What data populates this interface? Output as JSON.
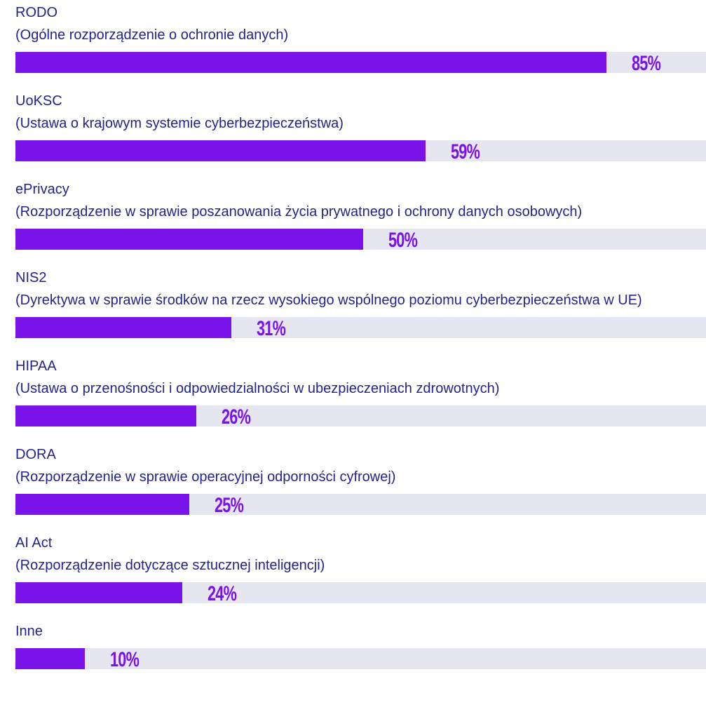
{
  "chart_data": {
    "type": "bar",
    "categories": [
      "RODO",
      "UoKSC",
      "ePrivacy",
      "NIS2",
      "HIPAA",
      "DORA",
      "AI Act",
      "Inne"
    ],
    "descriptions": [
      "(Ogólne rozporządzenie o ochronie danych)",
      "(Ustawa o krajowym systemie cyberbezpieczeństwa)",
      "(Rozporządzenie w sprawie poszanowania życia prywatnego i ochrony danych osobowych)",
      "(Dyrektywa w sprawie środków na rzecz wysokiego wspólnego poziomu cyberbezpieczeństwa w UE)",
      "(Ustawa o przenośności i odpowiedzialności w ubezpieczeniach zdrowotnych)",
      "(Rozporządzenie w sprawie operacyjnej odporności cyfrowej)",
      "(Rozporządzenie dotyczące sztucznej inteligencji)",
      null
    ],
    "values": [
      85,
      59,
      50,
      31,
      26,
      25,
      24,
      10
    ],
    "value_labels": [
      "85%",
      "59%",
      "50%",
      "31%",
      "26%",
      "25%",
      "24%",
      "10%"
    ],
    "color": "#7a12ea",
    "xlim": [
      0,
      100
    ]
  }
}
